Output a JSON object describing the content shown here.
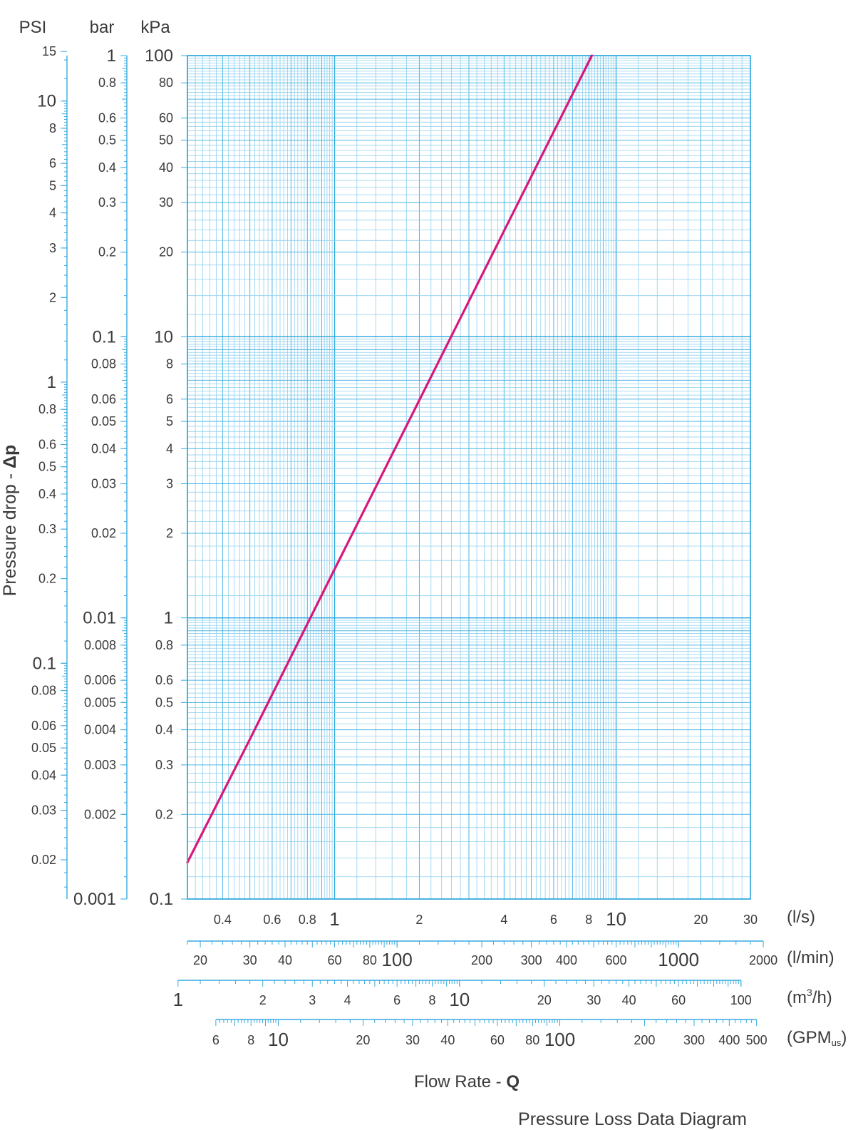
{
  "chart_data": {
    "type": "line",
    "title": "Pressure Loss Data Diagram",
    "xlabel": "Flow Rate - ",
    "xlabel_symbol": "Q",
    "ylabel": "Pressure drop  - ",
    "ylabel_symbol": "Δp",
    "x_scale": "log",
    "y_scale": "log",
    "xlim": [
      0.3,
      30
    ],
    "ylim": [
      0.1,
      100
    ],
    "x_units": "l/s",
    "y_units": "kPa",
    "grid": true,
    "series": [
      {
        "color": "#d6197c",
        "x": [
          0.3,
          0.5,
          1,
          2,
          4,
          8.2
        ],
        "y": [
          0.135,
          0.37,
          1.49,
          5.95,
          23.8,
          100
        ]
      }
    ],
    "y_axes": [
      {
        "unit": "PSI",
        "factor": 0.145038,
        "ticks": [
          {
            "v": 15,
            "label": "15",
            "size": "s"
          },
          {
            "v": 10,
            "label": "10",
            "size": "l"
          },
          {
            "v": 8,
            "label": "8",
            "size": "s"
          },
          {
            "v": 6,
            "label": "6",
            "size": "s"
          },
          {
            "v": 5,
            "label": "5",
            "size": "s"
          },
          {
            "v": 4,
            "label": "4",
            "size": "s"
          },
          {
            "v": 3,
            "label": "3",
            "size": "s"
          },
          {
            "v": 2,
            "label": "2",
            "size": "s"
          },
          {
            "v": 1,
            "label": "1",
            "size": "l"
          },
          {
            "v": 0.8,
            "label": "0.8",
            "size": "s"
          },
          {
            "v": 0.6,
            "label": "0.6",
            "size": "s"
          },
          {
            "v": 0.5,
            "label": "0.5",
            "size": "s"
          },
          {
            "v": 0.4,
            "label": "0.4",
            "size": "s"
          },
          {
            "v": 0.3,
            "label": "0.3",
            "size": "s"
          },
          {
            "v": 0.2,
            "label": "0.2",
            "size": "s"
          },
          {
            "v": 0.1,
            "label": "0.1",
            "size": "l"
          },
          {
            "v": 0.08,
            "label": "0.08",
            "size": "s"
          },
          {
            "v": 0.06,
            "label": "0.06",
            "size": "s"
          },
          {
            "v": 0.05,
            "label": "0.05",
            "size": "s"
          },
          {
            "v": 0.04,
            "label": "0.04",
            "size": "s"
          },
          {
            "v": 0.03,
            "label": "0.03",
            "size": "s"
          },
          {
            "v": 0.02,
            "label": "0.02",
            "size": "s"
          }
        ]
      },
      {
        "unit": "bar",
        "factor": 0.01,
        "ticks": [
          {
            "v": 1,
            "label": "1",
            "size": "l"
          },
          {
            "v": 0.8,
            "label": "0.8",
            "size": "s"
          },
          {
            "v": 0.6,
            "label": "0.6",
            "size": "s"
          },
          {
            "v": 0.5,
            "label": "0.5",
            "size": "s"
          },
          {
            "v": 0.4,
            "label": "0.4",
            "size": "s"
          },
          {
            "v": 0.3,
            "label": "0.3",
            "size": "s"
          },
          {
            "v": 0.2,
            "label": "0.2",
            "size": "s"
          },
          {
            "v": 0.1,
            "label": "0.1",
            "size": "l"
          },
          {
            "v": 0.08,
            "label": "0.08",
            "size": "s"
          },
          {
            "v": 0.06,
            "label": "0.06",
            "size": "s"
          },
          {
            "v": 0.05,
            "label": "0.05",
            "size": "s"
          },
          {
            "v": 0.04,
            "label": "0.04",
            "size": "s"
          },
          {
            "v": 0.03,
            "label": "0.03",
            "size": "s"
          },
          {
            "v": 0.02,
            "label": "0.02",
            "size": "s"
          },
          {
            "v": 0.01,
            "label": "0.01",
            "size": "l"
          },
          {
            "v": 0.008,
            "label": "0.008",
            "size": "s"
          },
          {
            "v": 0.006,
            "label": "0.006",
            "size": "s"
          },
          {
            "v": 0.005,
            "label": "0.005",
            "size": "s"
          },
          {
            "v": 0.004,
            "label": "0.004",
            "size": "s"
          },
          {
            "v": 0.003,
            "label": "0.003",
            "size": "s"
          },
          {
            "v": 0.002,
            "label": "0.002",
            "size": "s"
          },
          {
            "v": 0.001,
            "label": "0.001",
            "size": "l"
          }
        ]
      },
      {
        "unit": "kPa",
        "factor": 1,
        "ticks": [
          {
            "v": 100,
            "label": "100",
            "size": "l"
          },
          {
            "v": 80,
            "label": "80",
            "size": "s"
          },
          {
            "v": 60,
            "label": "60",
            "size": "s"
          },
          {
            "v": 50,
            "label": "50",
            "size": "s"
          },
          {
            "v": 40,
            "label": "40",
            "size": "s"
          },
          {
            "v": 30,
            "label": "30",
            "size": "s"
          },
          {
            "v": 20,
            "label": "20",
            "size": "s"
          },
          {
            "v": 10,
            "label": "10",
            "size": "l"
          },
          {
            "v": 8,
            "label": "8",
            "size": "s"
          },
          {
            "v": 6,
            "label": "6",
            "size": "s"
          },
          {
            "v": 5,
            "label": "5",
            "size": "s"
          },
          {
            "v": 4,
            "label": "4",
            "size": "s"
          },
          {
            "v": 3,
            "label": "3",
            "size": "s"
          },
          {
            "v": 2,
            "label": "2",
            "size": "s"
          },
          {
            "v": 1,
            "label": "1",
            "size": "l"
          },
          {
            "v": 0.8,
            "label": "0.8",
            "size": "s"
          },
          {
            "v": 0.6,
            "label": "0.6",
            "size": "s"
          },
          {
            "v": 0.5,
            "label": "0.5",
            "size": "s"
          },
          {
            "v": 0.4,
            "label": "0.4",
            "size": "s"
          },
          {
            "v": 0.3,
            "label": "0.3",
            "size": "s"
          },
          {
            "v": 0.2,
            "label": "0.2",
            "size": "s"
          },
          {
            "v": 0.1,
            "label": "0.1",
            "size": "l"
          }
        ]
      }
    ],
    "x_axes": [
      {
        "unit": "(l/s)",
        "factor": 1,
        "min": 0.3,
        "max": 30,
        "ticks": [
          {
            "v": 0.4,
            "label": "0.4",
            "size": "s"
          },
          {
            "v": 0.6,
            "label": "0.6",
            "size": "s"
          },
          {
            "v": 0.8,
            "label": "0.8",
            "size": "s"
          },
          {
            "v": 1,
            "label": "1",
            "size": "l"
          },
          {
            "v": 2,
            "label": "2",
            "size": "s"
          },
          {
            "v": 4,
            "label": "4",
            "size": "s"
          },
          {
            "v": 6,
            "label": "6",
            "size": "s"
          },
          {
            "v": 8,
            "label": "8",
            "size": "s"
          },
          {
            "v": 10,
            "label": "10",
            "size": "l"
          },
          {
            "v": 20,
            "label": "20",
            "size": "s"
          },
          {
            "v": 30,
            "label": "30",
            "size": "s"
          }
        ]
      },
      {
        "unit": "(l/min)",
        "factor": 60,
        "min": 18,
        "max": 2000,
        "ticks": [
          {
            "v": 20,
            "label": "20",
            "size": "s"
          },
          {
            "v": 30,
            "label": "30",
            "size": "s"
          },
          {
            "v": 40,
            "label": "40",
            "size": "s"
          },
          {
            "v": 60,
            "label": "60",
            "size": "s"
          },
          {
            "v": 80,
            "label": "80",
            "size": "s"
          },
          {
            "v": 100,
            "label": "100",
            "size": "l"
          },
          {
            "v": 200,
            "label": "200",
            "size": "s"
          },
          {
            "v": 300,
            "label": "300",
            "size": "s"
          },
          {
            "v": 400,
            "label": "400",
            "size": "s"
          },
          {
            "v": 600,
            "label": "600",
            "size": "s"
          },
          {
            "v": 1000,
            "label": "1000",
            "size": "l"
          },
          {
            "v": 2000,
            "label": "2000",
            "size": "s"
          }
        ]
      },
      {
        "unit_prefix": "(m",
        "unit_sup": "3",
        "unit_suffix": "/h)",
        "factor": 3.6,
        "min": 1,
        "max": 100,
        "ticks": [
          {
            "v": 1,
            "label": "1",
            "size": "l"
          },
          {
            "v": 2,
            "label": "2",
            "size": "s"
          },
          {
            "v": 3,
            "label": "3",
            "size": "s"
          },
          {
            "v": 4,
            "label": "4",
            "size": "s"
          },
          {
            "v": 6,
            "label": "6",
            "size": "s"
          },
          {
            "v": 8,
            "label": "8",
            "size": "s"
          },
          {
            "v": 10,
            "label": "10",
            "size": "l"
          },
          {
            "v": 20,
            "label": "20",
            "size": "s"
          },
          {
            "v": 30,
            "label": "30",
            "size": "s"
          },
          {
            "v": 40,
            "label": "40",
            "size": "s"
          },
          {
            "v": 60,
            "label": "60",
            "size": "s"
          },
          {
            "v": 100,
            "label": "100",
            "size": "s"
          }
        ]
      },
      {
        "unit_prefix": "(GPM",
        "unit_sub": "us",
        "unit_suffix": ")",
        "factor": 15.8503,
        "min": 6,
        "max": 500,
        "ticks": [
          {
            "v": 6,
            "label": "6",
            "size": "s"
          },
          {
            "v": 8,
            "label": "8",
            "size": "s"
          },
          {
            "v": 10,
            "label": "10",
            "size": "l"
          },
          {
            "v": 20,
            "label": "20",
            "size": "s"
          },
          {
            "v": 30,
            "label": "30",
            "size": "s"
          },
          {
            "v": 40,
            "label": "40",
            "size": "s"
          },
          {
            "v": 60,
            "label": "60",
            "size": "s"
          },
          {
            "v": 80,
            "label": "80",
            "size": "s"
          },
          {
            "v": 100,
            "label": "100",
            "size": "l"
          },
          {
            "v": 200,
            "label": "200",
            "size": "s"
          },
          {
            "v": 300,
            "label": "300",
            "size": "s"
          },
          {
            "v": 400,
            "label": "400",
            "size": "s"
          },
          {
            "v": 500,
            "label": "500",
            "size": "s"
          }
        ]
      }
    ]
  }
}
